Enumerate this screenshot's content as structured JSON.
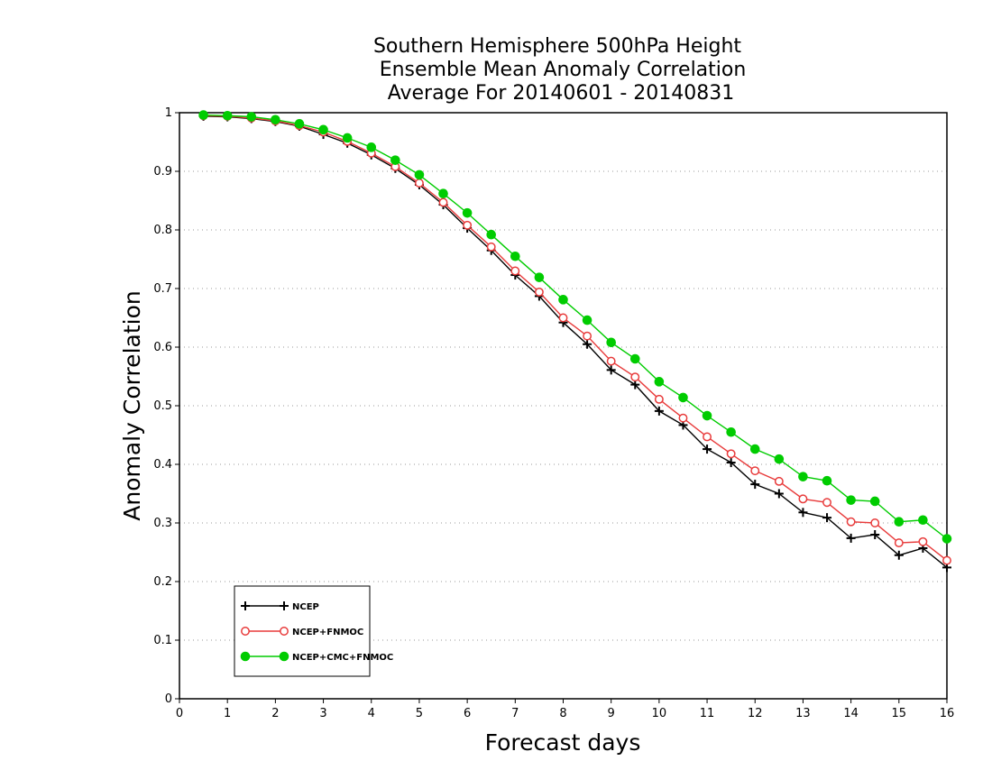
{
  "chart_data": {
    "type": "line",
    "title": [
      "Southern Hemisphere 500hPa Height",
      "Ensemble Mean Anomaly Correlation",
      "Average For 20140601 - 20140831"
    ],
    "xlabel": "Forecast days",
    "ylabel": "Anomaly Correlation",
    "xlim": [
      0,
      16
    ],
    "ylim": [
      0,
      1
    ],
    "x_ticks": [
      "0",
      "1",
      "2",
      "3",
      "4",
      "5",
      "6",
      "7",
      "8",
      "9",
      "10",
      "11",
      "12",
      "13",
      "14",
      "15",
      "16"
    ],
    "y_ticks": [
      "0",
      "0.1",
      "0.2",
      "0.3",
      "0.4",
      "0.5",
      "0.6",
      "0.7",
      "0.8",
      "0.9",
      "1"
    ],
    "grid": "horizontal dotted",
    "legend_placement": "bottom-left",
    "x": [
      0.5,
      1,
      1.5,
      2,
      2.5,
      3,
      3.5,
      4,
      4.5,
      5,
      5.5,
      6,
      6.5,
      7,
      7.5,
      8,
      8.5,
      9,
      9.5,
      10,
      10.5,
      11,
      11.5,
      12,
      12.5,
      13,
      13.5,
      14,
      14.5,
      15,
      15.5,
      16
    ],
    "series": [
      {
        "name": "NCEP",
        "color": "#000000",
        "marker": "plus",
        "values": [
          0.994,
          0.993,
          0.99,
          0.985,
          0.977,
          0.963,
          0.948,
          0.928,
          0.905,
          0.877,
          0.843,
          0.803,
          0.765,
          0.723,
          0.687,
          0.642,
          0.605,
          0.561,
          0.536,
          0.491,
          0.467,
          0.426,
          0.403,
          0.366,
          0.35,
          0.318,
          0.309,
          0.274,
          0.28,
          0.245,
          0.257,
          0.224
        ]
      },
      {
        "name": "NCEP+FNMOC",
        "color": "#e83b3b",
        "marker": "open-circle",
        "values": [
          0.995,
          0.994,
          0.991,
          0.986,
          0.978,
          0.967,
          0.951,
          0.931,
          0.908,
          0.88,
          0.847,
          0.808,
          0.771,
          0.73,
          0.694,
          0.65,
          0.619,
          0.576,
          0.549,
          0.511,
          0.479,
          0.447,
          0.418,
          0.389,
          0.371,
          0.341,
          0.335,
          0.302,
          0.3,
          0.266,
          0.268,
          0.236
        ]
      },
      {
        "name": "NCEP+CMC+FNMOC",
        "color": "#00cc00",
        "marker": "filled-circle",
        "values": [
          0.996,
          0.995,
          0.993,
          0.988,
          0.981,
          0.971,
          0.957,
          0.941,
          0.919,
          0.894,
          0.862,
          0.829,
          0.792,
          0.755,
          0.719,
          0.681,
          0.646,
          0.608,
          0.58,
          0.541,
          0.514,
          0.483,
          0.455,
          0.426,
          0.409,
          0.379,
          0.372,
          0.339,
          0.337,
          0.302,
          0.305,
          0.273
        ]
      }
    ]
  }
}
